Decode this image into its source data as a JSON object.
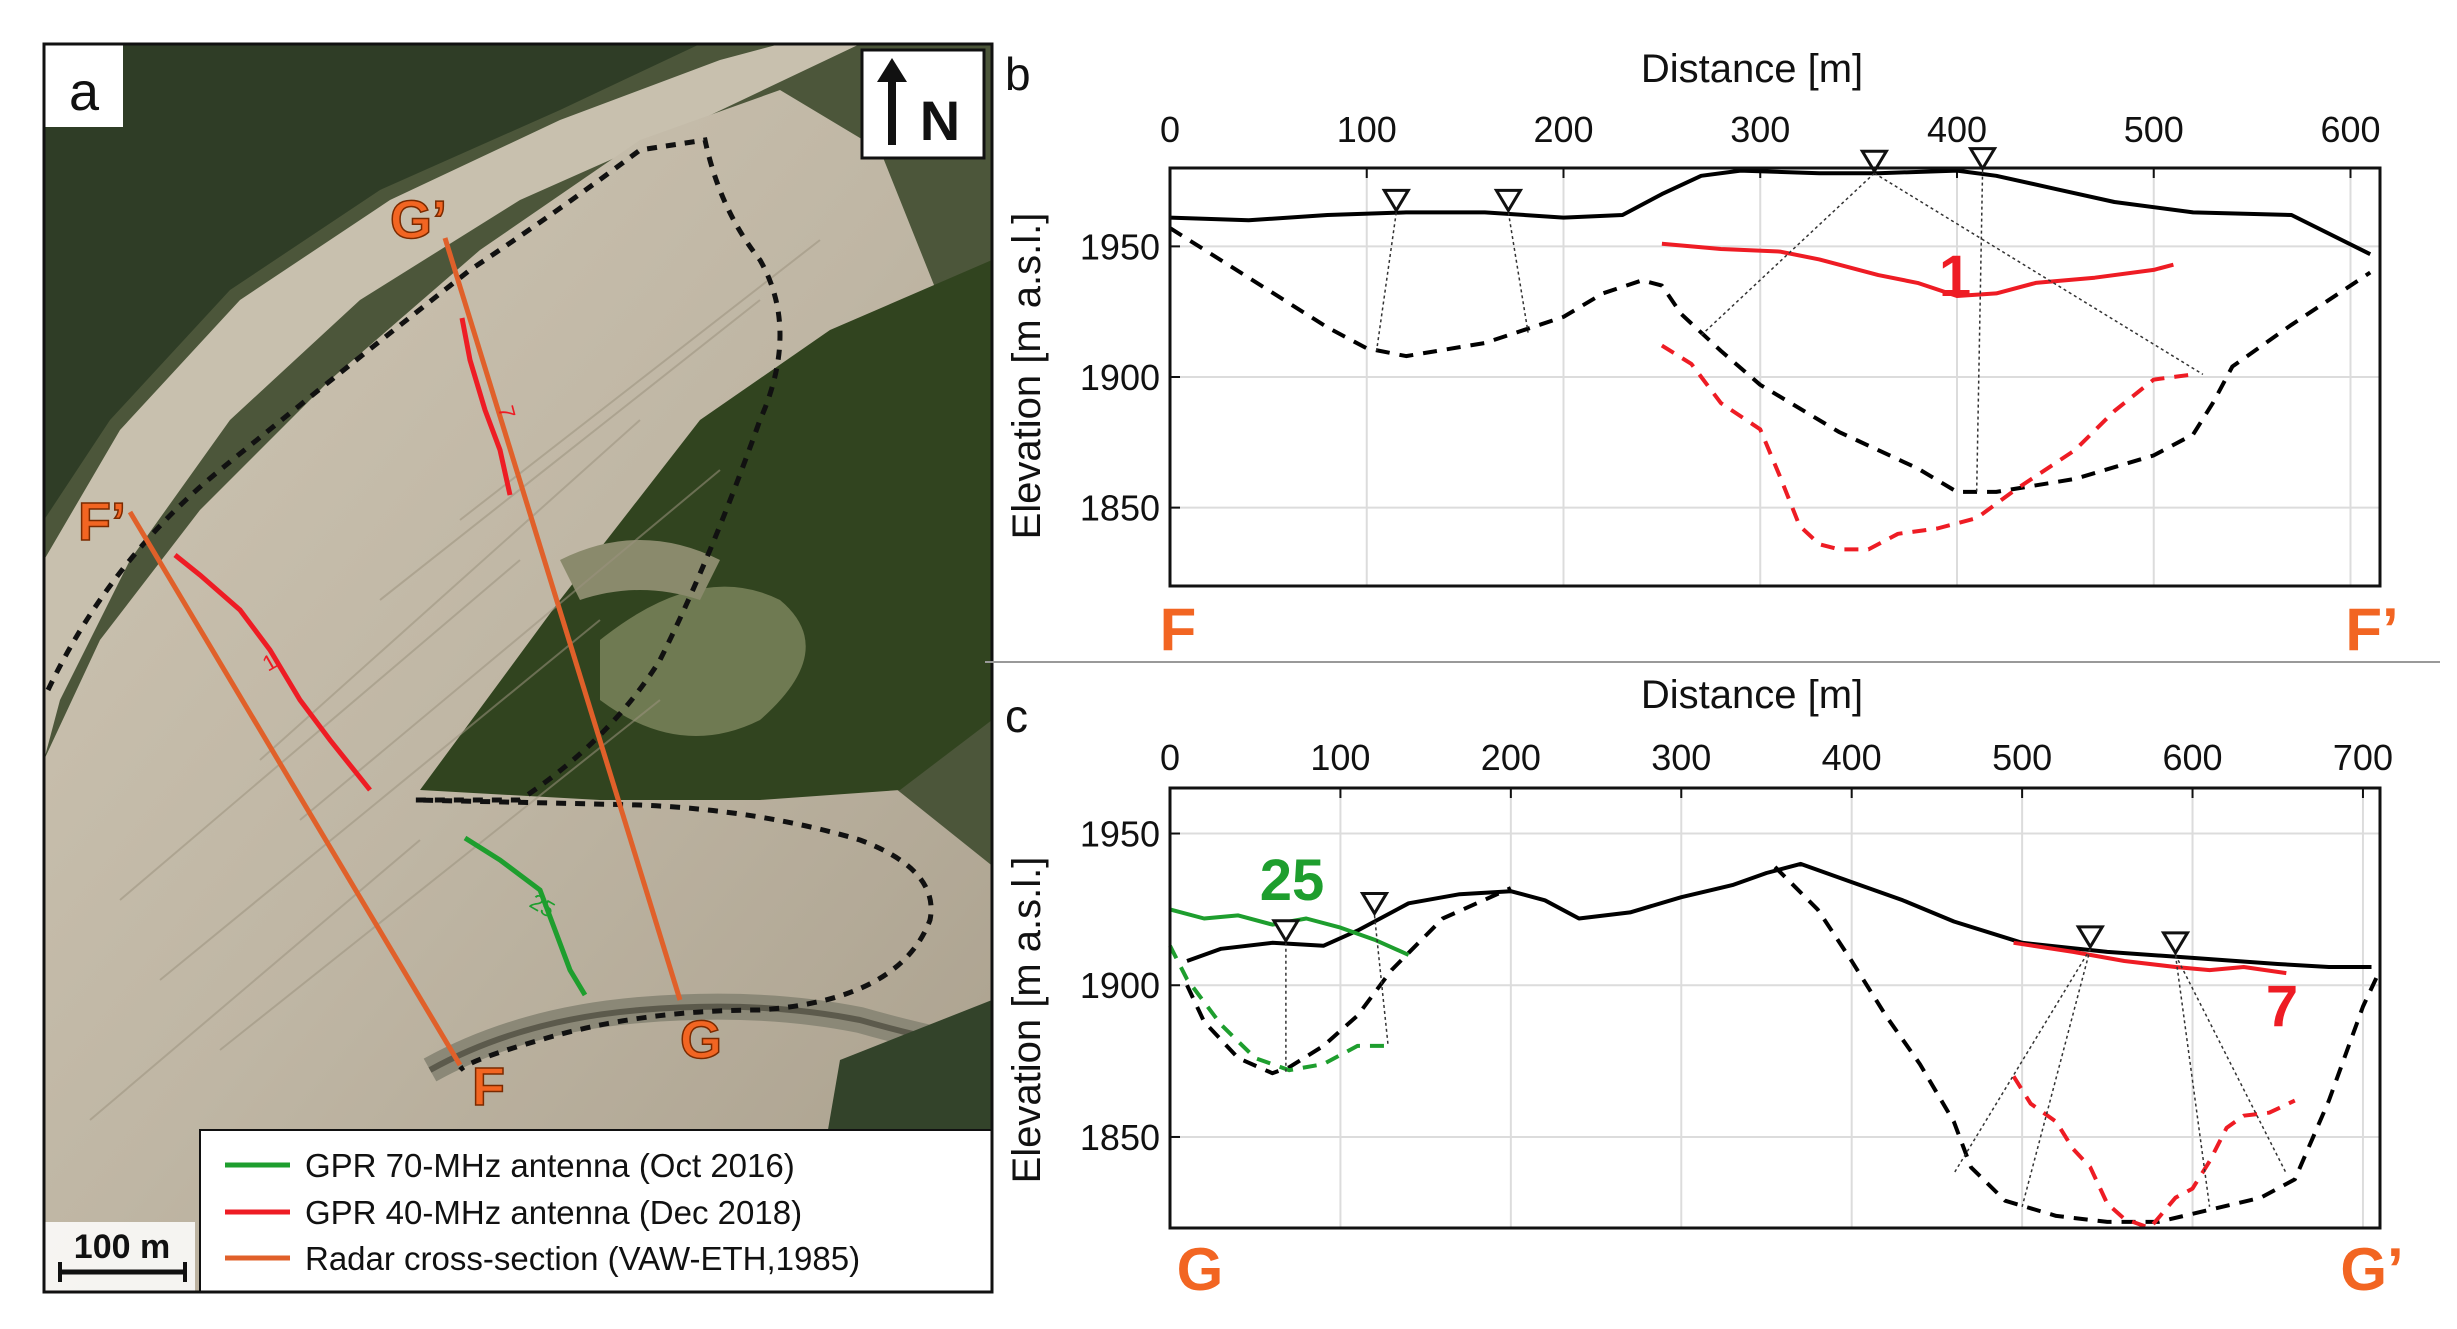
{
  "panel_a": {
    "label": "a",
    "north": "N",
    "scale_label": "100 m",
    "legend": [
      {
        "label": "GPR 70-MHz antenna (Oct 2016)",
        "color": "#1e9e2e"
      },
      {
        "label": "GPR 40-MHz antenna (Dec 2018)",
        "color": "#ee1c24"
      },
      {
        "label": "Radar cross-section (VAW-ETH,1985)",
        "color": "#e0602a"
      }
    ],
    "points": {
      "F": "F",
      "Fp": "F’",
      "G": "G",
      "Gp": "G’"
    },
    "line_labels": {
      "l1": "1",
      "l7": "7",
      "l25": "25"
    }
  },
  "chart_data": [
    {
      "type": "line",
      "panel": "b",
      "title": "",
      "xlabel": "Distance [m]",
      "ylabel": "Elevation [m a.s.l.]",
      "xlim": [
        0,
        615
      ],
      "ylim": [
        1820,
        1980
      ],
      "xticks": [
        0,
        100,
        200,
        300,
        400,
        500,
        600
      ],
      "yticks": [
        1850,
        1900,
        1950
      ],
      "grid": true,
      "start_label": "F",
      "end_label": "F’",
      "profile_label": "1",
      "series": [
        {
          "style": "solid",
          "color": "#000000",
          "x": [
            0,
            40,
            80,
            120,
            160,
            200,
            230,
            250,
            270,
            290,
            330,
            360,
            400,
            420,
            450,
            480,
            520,
            570,
            610
          ],
          "y": [
            1961,
            1960,
            1962,
            1963,
            1963,
            1961,
            1962,
            1970,
            1977,
            1979,
            1978,
            1978,
            1979,
            1977,
            1972,
            1967,
            1963,
            1962,
            1947
          ]
        },
        {
          "style": "dashed",
          "color": "#000000",
          "x": [
            0,
            40,
            80,
            100,
            120,
            160,
            200,
            220,
            240,
            250,
            260,
            280,
            300,
            340,
            380,
            400,
            420,
            460,
            500,
            520,
            530,
            540,
            570,
            610
          ],
          "y": [
            1957,
            1938,
            1919,
            1911,
            1908,
            1913,
            1923,
            1932,
            1937,
            1935,
            1924,
            1910,
            1897,
            1879,
            1865,
            1856,
            1856,
            1861,
            1870,
            1878,
            1890,
            1904,
            1920,
            1940
          ]
        },
        {
          "style": "solid",
          "color": "#ee1c24",
          "x": [
            250,
            280,
            310,
            330,
            360,
            380,
            400,
            420,
            440,
            470,
            500,
            510
          ],
          "y": [
            1951,
            1949,
            1948,
            1945,
            1939,
            1936,
            1931,
            1932,
            1936,
            1938,
            1941,
            1943
          ]
        },
        {
          "style": "dashed",
          "color": "#ee1c24",
          "x": [
            250,
            265,
            280,
            300,
            310,
            320,
            330,
            340,
            355,
            370,
            390,
            410,
            430,
            460,
            480,
            500,
            520
          ],
          "y": [
            1912,
            1905,
            1890,
            1880,
            1862,
            1843,
            1836,
            1834,
            1834,
            1840,
            1842,
            1846,
            1857,
            1872,
            1887,
            1899,
            1901
          ]
        }
      ],
      "markers": [
        {
          "x": 115,
          "y": 1963
        },
        {
          "x": 172,
          "y": 1963
        },
        {
          "x": 358,
          "y": 1978
        },
        {
          "x": 413,
          "y": 1979
        }
      ],
      "rays": [
        {
          "from": [
            115,
            1963
          ],
          "to": [
            105,
            1910
          ]
        },
        {
          "from": [
            172,
            1963
          ],
          "to": [
            182,
            1917
          ]
        },
        {
          "from": [
            358,
            1978
          ],
          "to": [
            270,
            1916
          ]
        },
        {
          "from": [
            358,
            1978
          ],
          "to": [
            525,
            1901
          ]
        },
        {
          "from": [
            413,
            1979
          ],
          "to": [
            410,
            1856
          ]
        }
      ]
    },
    {
      "type": "line",
      "panel": "c",
      "title": "",
      "xlabel": "Distance [m]",
      "ylabel": "Elevation [m a.s.l.]",
      "xlim": [
        0,
        710
      ],
      "ylim": [
        1820,
        1965
      ],
      "xticks": [
        0,
        100,
        200,
        300,
        400,
        500,
        600,
        700
      ],
      "yticks": [
        1850,
        1900,
        1950
      ],
      "grid": true,
      "start_label": "G",
      "end_label": "G’",
      "profile_labels": [
        "25",
        "7"
      ],
      "series": [
        {
          "style": "solid",
          "color": "#000000",
          "x": [
            10,
            30,
            60,
            90,
            110,
            140,
            170,
            200,
            220,
            240,
            270,
            300,
            330,
            350,
            370,
            400,
            430,
            460,
            500,
            550,
            600,
            650,
            680,
            705
          ],
          "y": [
            1908,
            1912,
            1914,
            1913,
            1918,
            1927,
            1930,
            1931,
            1928,
            1922,
            1924,
            1929,
            1933,
            1937,
            1940,
            1934,
            1928,
            1921,
            1914,
            1911,
            1909,
            1907,
            1906,
            1906
          ]
        },
        {
          "style": "dashed",
          "color": "#000000",
          "x": [
            10,
            20,
            40,
            60,
            70,
            90,
            110,
            130,
            160,
            200
          ],
          "y": [
            1900,
            1888,
            1876,
            1871,
            1873,
            1880,
            1890,
            1905,
            1922,
            1932
          ]
        },
        {
          "style": "dashed",
          "color": "#000000",
          "x": [
            355,
            380,
            400,
            420,
            440,
            460,
            470,
            490,
            520,
            550,
            580,
            610,
            640,
            660,
            680,
            700,
            710
          ],
          "y": [
            1939,
            1925,
            1908,
            1890,
            1874,
            1855,
            1840,
            1829,
            1824,
            1822,
            1822,
            1826,
            1830,
            1836,
            1862,
            1893,
            1905
          ]
        },
        {
          "style": "solid",
          "color": "#1e9e2e",
          "x": [
            0,
            20,
            40,
            60,
            80,
            100,
            120,
            140
          ],
          "y": [
            1925,
            1922,
            1923,
            1920,
            1922,
            1919,
            1915,
            1910
          ]
        },
        {
          "style": "dashed",
          "color": "#1e9e2e",
          "x": [
            0,
            10,
            30,
            50,
            70,
            90,
            110,
            130
          ],
          "y": [
            1913,
            1902,
            1887,
            1876,
            1872,
            1874,
            1880,
            1880
          ]
        },
        {
          "style": "solid",
          "color": "#ee1c24",
          "x": [
            495,
            530,
            560,
            590,
            610,
            630,
            655
          ],
          "y": [
            1914,
            1911,
            1908,
            1906,
            1905,
            1906,
            1904
          ]
        },
        {
          "style": "dashed",
          "color": "#ee1c24",
          "x": [
            495,
            505,
            520,
            530,
            540,
            550,
            560,
            575,
            590,
            600,
            610,
            620,
            630,
            645,
            660
          ],
          "y": [
            1870,
            1861,
            1855,
            1846,
            1840,
            1828,
            1823,
            1820,
            1830,
            1833,
            1842,
            1853,
            1857,
            1858,
            1862
          ]
        }
      ],
      "markers": [
        {
          "x": 68,
          "y": 1914
        },
        {
          "x": 120,
          "y": 1923
        },
        {
          "x": 540,
          "y": 1912
        },
        {
          "x": 590,
          "y": 1910
        }
      ],
      "rays": [
        {
          "from": [
            68,
            1914
          ],
          "to": [
            68,
            1871
          ]
        },
        {
          "from": [
            120,
            1923
          ],
          "to": [
            128,
            1880
          ]
        },
        {
          "from": [
            540,
            1912
          ],
          "to": [
            460,
            1838
          ]
        },
        {
          "from": [
            540,
            1912
          ],
          "to": [
            500,
            1827
          ]
        },
        {
          "from": [
            590,
            1910
          ],
          "to": [
            655,
            1838
          ]
        },
        {
          "from": [
            590,
            1910
          ],
          "to": [
            610,
            1827
          ]
        }
      ]
    }
  ]
}
